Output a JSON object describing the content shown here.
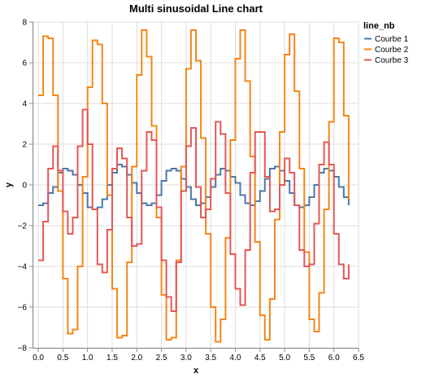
{
  "chart_data": {
    "type": "line",
    "interpolation": "step",
    "title": "Multi sinusoidal Line chart",
    "xlabel": "x",
    "ylabel": "y",
    "xlim": [
      -0.1,
      6.5
    ],
    "ylim": [
      -8,
      8
    ],
    "x_ticks": [
      "0.0",
      "0.5",
      "1.0",
      "1.5",
      "2.0",
      "2.5",
      "3.0",
      "3.5",
      "4.0",
      "4.5",
      "5.0",
      "5.5",
      "6.0",
      "6.5"
    ],
    "y_ticks": [
      "8",
      "6",
      "4",
      "2",
      "0",
      "−2",
      "−4",
      "−6",
      "−8"
    ],
    "grid": true,
    "legend": {
      "title": "line_nb",
      "position": "right"
    },
    "x": [
      0.0,
      0.1,
      0.2,
      0.3,
      0.4,
      0.5,
      0.6,
      0.7,
      0.8,
      0.9,
      1.0,
      1.1,
      1.2,
      1.3,
      1.4,
      1.5,
      1.6,
      1.7,
      1.8,
      1.9,
      2.0,
      2.1,
      2.2,
      2.3,
      2.4,
      2.5,
      2.6,
      2.7,
      2.8,
      2.9,
      3.0,
      3.1,
      3.2,
      3.3,
      3.4,
      3.5,
      3.6,
      3.7,
      3.8,
      3.9,
      4.0,
      4.1,
      4.2,
      4.3,
      4.4,
      4.5,
      4.6,
      4.7,
      4.8,
      4.9,
      5.0,
      5.1,
      5.2,
      5.3,
      5.4,
      5.5,
      5.6,
      5.7,
      5.8,
      5.9,
      6.0,
      6.1,
      6.2,
      6.3
    ],
    "series": [
      {
        "name": "Courbe 1",
        "color": "#4c78a8",
        "values": [
          -1.0,
          -0.9,
          -0.4,
          -0.1,
          0.6,
          0.8,
          0.7,
          0.5,
          0.0,
          -0.4,
          -1.1,
          -1.2,
          -1.1,
          -0.7,
          0.0,
          0.6,
          1.0,
          0.9,
          0.5,
          0.1,
          -0.4,
          -0.9,
          -1.0,
          -0.9,
          -0.5,
          0.2,
          0.7,
          0.8,
          0.7,
          0.3,
          -0.1,
          -0.7,
          -1.0,
          -0.9,
          -0.6,
          -0.1,
          0.5,
          0.8,
          0.7,
          0.4,
          0.1,
          -0.5,
          -0.9,
          -1.0,
          -0.8,
          -0.3,
          0.3,
          0.8,
          0.9,
          0.7,
          0.2,
          -0.4,
          -1.0,
          -1.1,
          -1.0,
          -0.6,
          0.0,
          0.6,
          0.8,
          0.7,
          0.4,
          -0.1,
          -0.6,
          -1.0
        ]
      },
      {
        "name": "Courbe 2",
        "color": "#f58518",
        "values": [
          4.4,
          7.3,
          7.2,
          4.4,
          -0.3,
          -4.6,
          -7.3,
          -7.1,
          -4.0,
          0.4,
          4.8,
          7.1,
          6.9,
          4.0,
          -0.5,
          -5.1,
          -7.5,
          -7.4,
          -3.8,
          0.9,
          5.4,
          7.6,
          6.3,
          2.9,
          -1.6,
          -5.4,
          -7.6,
          -7.5,
          -3.7,
          0.9,
          5.7,
          7.6,
          6.1,
          2.3,
          -2.4,
          -6.0,
          -7.7,
          -6.6,
          -2.6,
          2.2,
          6.2,
          7.6,
          5.1,
          1.4,
          -2.8,
          -6.4,
          -7.6,
          -5.6,
          -1.7,
          2.6,
          6.4,
          7.4,
          4.6,
          0.8,
          -3.3,
          -6.6,
          -7.2,
          -5.3,
          -1.2,
          3.1,
          7.2,
          7.0,
          3.4,
          -0.7
        ]
      },
      {
        "name": "Courbe 3",
        "color": "#e45756",
        "values": [
          -3.7,
          -1.8,
          0.8,
          1.9,
          0.7,
          -1.3,
          -2.4,
          -1.6,
          1.9,
          3.7,
          2.0,
          -1.2,
          -3.9,
          -4.3,
          -2.2,
          0.8,
          1.8,
          1.3,
          -1.6,
          -3.0,
          -2.9,
          0.7,
          2.6,
          2.2,
          -1.1,
          -3.7,
          -5.5,
          -6.2,
          -3.8,
          -0.3,
          1.9,
          2.8,
          -0.1,
          -1.6,
          -1.2,
          0.3,
          3.1,
          2.5,
          -0.4,
          -3.4,
          -5.1,
          -5.9,
          -3.2,
          0.6,
          2.6,
          2.6,
          0.4,
          -1.3,
          -1.2,
          0.0,
          1.3,
          0.6,
          -1.0,
          -3.2,
          -4.0,
          -3.9,
          -1.9,
          1.0,
          2.1,
          1.0,
          -2.4,
          -3.9,
          -4.6,
          -3.9
        ]
      }
    ]
  }
}
